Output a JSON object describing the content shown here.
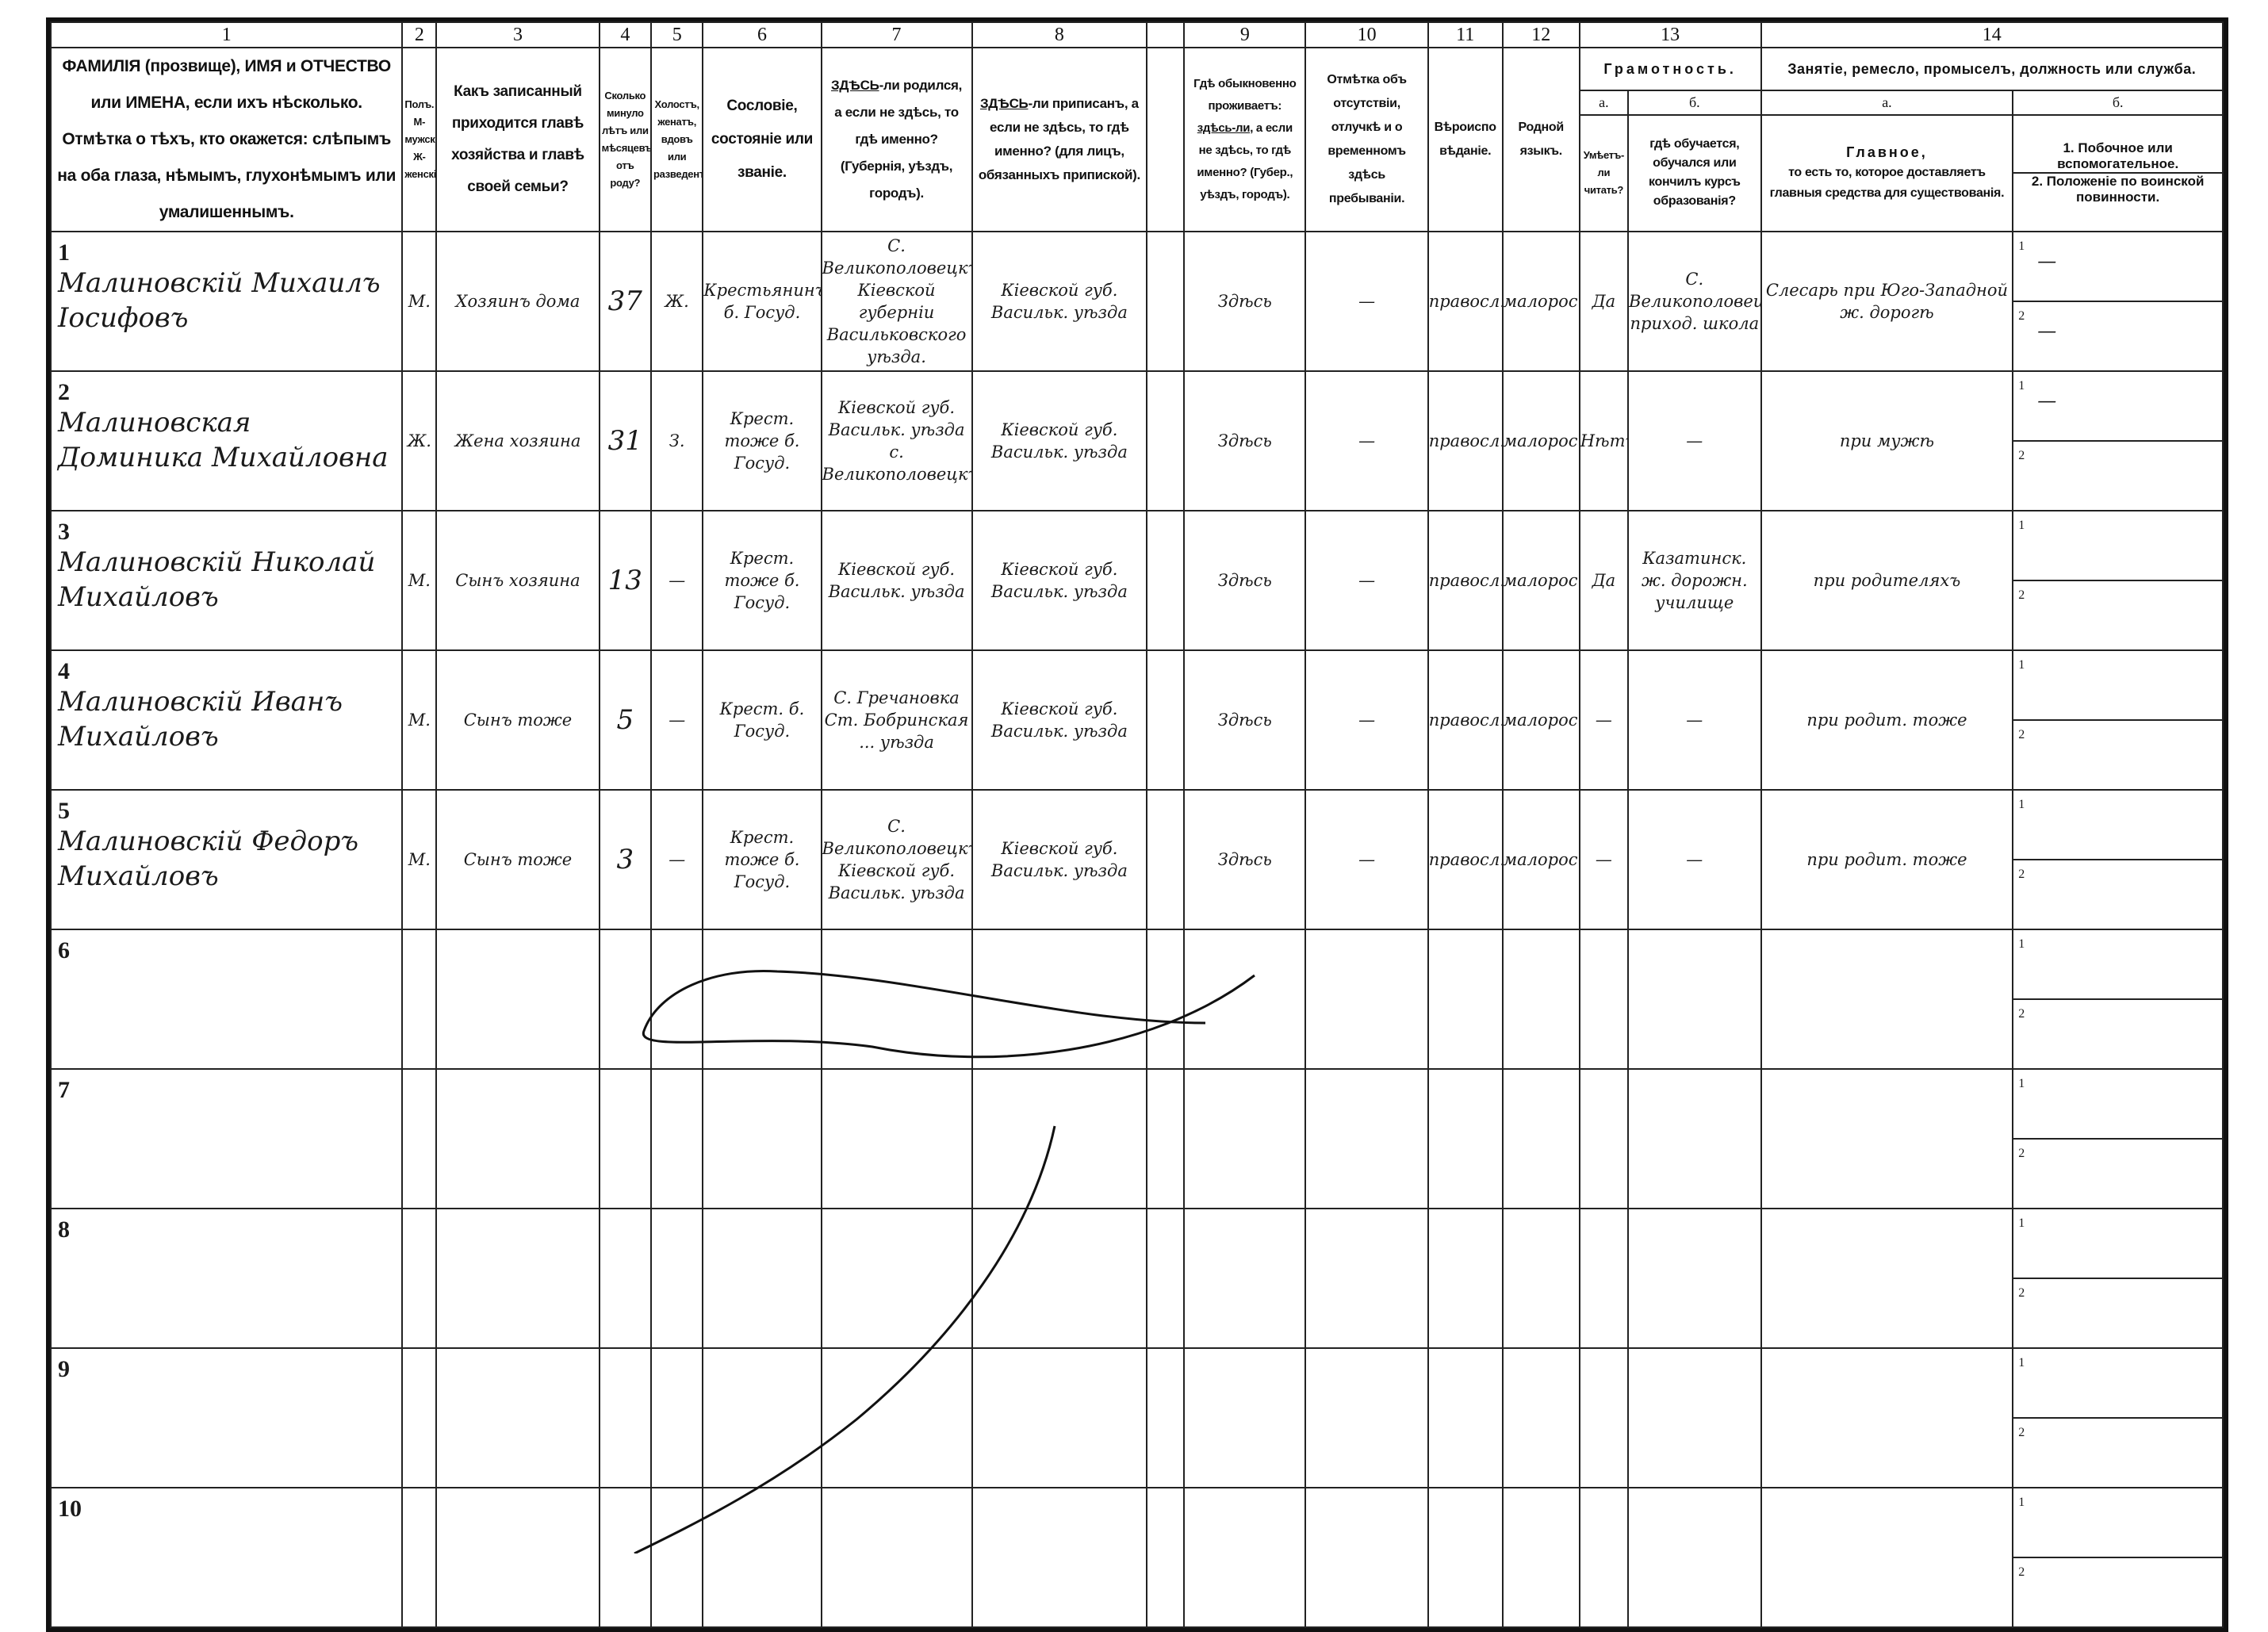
{
  "column_numbers": [
    "1",
    "2",
    "3",
    "4",
    "5",
    "",
    "6",
    "7",
    "8",
    "",
    "9",
    "10",
    "11",
    "12",
    "13",
    "14"
  ],
  "headers": {
    "c1": "ФАМИЛІЯ (прозвище), ИМЯ и ОТЧЕСТВО или ИМЕНА, если ихъ нѣсколько. Отмѣтка о тѣхъ, кто окажется: слѣпымъ на оба глаза, нѣмымъ, глухонѣмымъ или умалишеннымъ.",
    "c2": "Полъ. М-мужской. Ж-женскій.",
    "c3": "Какъ записанный приходится главѣ хозяйства и главѣ своей семьи?",
    "c4": "Сколько минуло лѣтъ или мѣсяцевъ отъ роду?",
    "c5": "Холостъ, женатъ, вдовъ или разведенъ.",
    "c6": "Сословіе, состояніе или званіе.",
    "c7_u": "ЗДѢСЬ",
    "c7": "-ли родился, а если не здѣсь, то гдѣ именно? (Губернія, уѣздъ, городъ).",
    "c8_u": "ЗДѢСЬ",
    "c8": "-ли приписанъ, а если не здѣсь, то гдѣ именно? (для лицъ, обязанныхъ припиской).",
    "c9_a": "Гдѣ обыкновенно проживаетъ:",
    "c9_u": "здѣсь-ли",
    "c9": ", а если не здѣсь, то гдѣ именно? (Губер., уѣздъ, городъ).",
    "c10": "Отмѣтка объ отсутствіи, отлучкѣ и о временномъ здѣсь пребываніи.",
    "c11": "Вѣроисповѣданіе.",
    "c12": "Родной языкъ.",
    "c13_title": "Грамотность.",
    "c13a_label": "а.",
    "c13b_label": "б.",
    "c13a": "Умѣетъ-ли читать?",
    "c13b": "гдѣ обучается, обучался или кончилъ курсъ образованія?",
    "c14_title": "Занятіе, ремесло, промыселъ, должность или служба.",
    "c14a_label": "а.",
    "c14b_label": "б.",
    "c14a_title": "Главное,",
    "c14a": "то есть то, которое доставляетъ главныя средства для существованія.",
    "c14b_1": "1. Побочное или вспомогательное.",
    "c14b_2": "2. Положеніе по воинской повинности."
  },
  "rows": [
    {
      "n": "1",
      "name": "Малиновскій Михаилъ Іосифовъ",
      "sex": "М.",
      "relation": "Хозяинъ дома",
      "age": "37",
      "marital": "Ж.",
      "estate": "Крестьянинъ б. Госуд.",
      "born": "С. Великополовецкъ Кіевской губерніи Васильковского уѣзда.",
      "registered": "Кіевской губ. Васильк. уѣзда",
      "residence": "Здѣсь",
      "absence": "—",
      "religion": "правосл.",
      "language": "малорос.",
      "literate": "Да",
      "schooling": "С. Великополовецкъ приход. школа",
      "occupation": "Слесарь при Юго-Западной ж. дорогѣ",
      "side": "—",
      "military": "—"
    },
    {
      "n": "2",
      "name": "Малиновская Доминика Михайловна",
      "sex": "Ж.",
      "relation": "Жена хозяина",
      "age": "31",
      "marital": "З.",
      "estate": "Крест. тоже б. Госуд.",
      "born": "Кіевской губ. Васильк. уѣзда с. Великополовецкъ",
      "registered": "Кіевской губ. Васильк. уѣзда",
      "residence": "Здѣсь",
      "absence": "—",
      "religion": "правосл.",
      "language": "малорос.",
      "literate": "Нѣтъ",
      "schooling": "—",
      "occupation": "при мужѣ",
      "side": "—",
      "military": ""
    },
    {
      "n": "3",
      "name": "Малиновскій Николай Михайловъ",
      "sex": "М.",
      "relation": "Сынъ хозяина",
      "age": "13",
      "marital": "—",
      "estate": "Крест. тоже б. Госуд.",
      "born": "Кіевской губ. Васильк. уѣзда",
      "registered": "Кіевской губ. Васильк. уѣзда",
      "residence": "Здѣсь",
      "absence": "—",
      "religion": "правосл.",
      "language": "малорос.",
      "literate": "Да",
      "schooling": "Казатинск. ж. дорожн. училище",
      "occupation": "при родителяхъ",
      "side": "",
      "military": ""
    },
    {
      "n": "4",
      "name": "Малиновскій Иванъ Михайловъ",
      "sex": "М.",
      "relation": "Сынъ тоже",
      "age": "5",
      "marital": "—",
      "estate": "Крест. б. Госуд.",
      "born": "С. Гречановка Ст. Бобринская ... уѣзда",
      "registered": "Кіевской губ. Васильк. уѣзда",
      "residence": "Здѣсь",
      "absence": "—",
      "religion": "правосл.",
      "language": "малорос.",
      "literate": "—",
      "schooling": "—",
      "occupation": "при родит. тоже",
      "side": "",
      "military": ""
    },
    {
      "n": "5",
      "name": "Малиновскій Федоръ Михайловъ",
      "sex": "М.",
      "relation": "Сынъ тоже",
      "age": "3",
      "marital": "—",
      "estate": "Крест. тоже б. Госуд.",
      "born": "С. Великополовецкъ Кіевской губ. Васильк. уѣзда",
      "registered": "Кіевской губ. Васильк. уѣзда",
      "residence": "Здѣсь",
      "absence": "—",
      "religion": "правосл.",
      "language": "малорос.",
      "literate": "—",
      "schooling": "—",
      "occupation": "при родит. тоже",
      "side": "",
      "military": ""
    },
    {
      "n": "6"
    },
    {
      "n": "7"
    },
    {
      "n": "8"
    },
    {
      "n": "9"
    },
    {
      "n": "10"
    }
  ],
  "sub_line_labels": [
    "1",
    "2"
  ],
  "colors": {
    "ink": "#111111",
    "paper": "#ffffff"
  }
}
